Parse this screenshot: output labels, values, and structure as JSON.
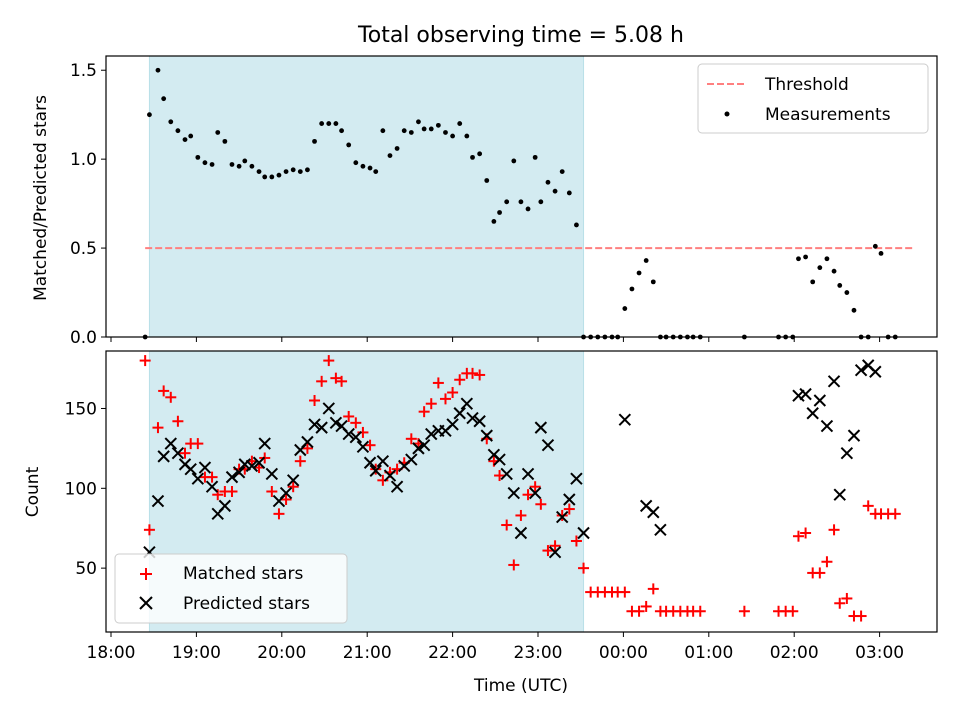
{
  "chart_data": [
    {
      "type": "scatter",
      "title": "Total observing time = 5.08 h",
      "ylabel": "Matched/Predicted stars",
      "xlim": [
        "18:00",
        "03:42"
      ],
      "ylim": [
        0,
        1.58
      ],
      "y_ticks": [
        "0.0",
        "0.5",
        "1.0",
        "1.5"
      ],
      "shaded_span": [
        "18:27",
        "23:32"
      ],
      "shade_color": "#d3ebf1",
      "legend_position": "top-right",
      "series": [
        {
          "name": "Threshold",
          "kind": "dashed-line",
          "color": "#ff7f7f",
          "x": [
            "18:24",
            "03:24"
          ],
          "y": [
            0.5,
            0.5
          ]
        },
        {
          "name": "Measurements",
          "kind": "dots",
          "color": "#000000",
          "x": [
            "18:24",
            "18:27",
            "18:33",
            "18:37",
            "18:42",
            "18:47",
            "18:52",
            "18:56",
            "19:01",
            "19:06",
            "19:11",
            "19:15",
            "19:20",
            "19:25",
            "19:30",
            "19:34",
            "19:39",
            "19:44",
            "19:48",
            "19:53",
            "19:58",
            "20:03",
            "20:08",
            "20:13",
            "20:18",
            "20:23",
            "20:28",
            "20:33",
            "20:38",
            "20:42",
            "20:47",
            "20:52",
            "20:57",
            "21:02",
            "21:06",
            "21:11",
            "21:16",
            "21:21",
            "21:26",
            "21:31",
            "21:36",
            "21:40",
            "21:45",
            "21:50",
            "21:55",
            "22:00",
            "22:05",
            "22:10",
            "22:14",
            "22:19",
            "22:24",
            "22:29",
            "22:33",
            "22:38",
            "22:43",
            "22:48",
            "22:53",
            "22:58",
            "23:02",
            "23:07",
            "23:12",
            "23:17",
            "23:22",
            "23:27",
            "23:32",
            "23:37",
            "23:42",
            "23:47",
            "23:52",
            "23:56",
            "00:01",
            "00:06",
            "00:11",
            "00:16",
            "00:21",
            "00:26",
            "00:30",
            "00:35",
            "00:40",
            "00:45",
            "00:49",
            "00:54",
            "01:25",
            "01:49",
            "01:54",
            "01:59",
            "02:03",
            "02:08",
            "02:13",
            "02:18",
            "02:23",
            "02:28",
            "02:32",
            "02:37",
            "02:42",
            "02:47",
            "02:52",
            "02:57",
            "03:01",
            "03:06",
            "03:11"
          ],
          "y": [
            0.0,
            1.25,
            1.5,
            1.34,
            1.21,
            1.16,
            1.11,
            1.13,
            1.01,
            0.98,
            0.97,
            1.15,
            1.1,
            0.97,
            0.96,
            0.99,
            0.96,
            0.93,
            0.9,
            0.9,
            0.91,
            0.93,
            0.94,
            0.93,
            0.94,
            1.1,
            1.2,
            1.2,
            1.2,
            1.16,
            1.08,
            0.98,
            0.96,
            0.95,
            0.93,
            1.16,
            1.02,
            1.06,
            1.16,
            1.15,
            1.21,
            1.17,
            1.17,
            1.19,
            1.15,
            1.13,
            1.2,
            1.13,
            1.01,
            1.03,
            0.88,
            0.65,
            0.7,
            0.76,
            0.99,
            0.76,
            0.72,
            1.01,
            0.76,
            0.87,
            0.82,
            0.93,
            0.81,
            0.63,
            0.0,
            0.0,
            0.0,
            0.0,
            0.0,
            0.0,
            0.16,
            0.27,
            0.36,
            0.43,
            0.31,
            0.0,
            0.0,
            0.0,
            0.0,
            0.0,
            0.0,
            0.0,
            0.0,
            0.0,
            0.0,
            0.0,
            0.44,
            0.45,
            0.31,
            0.39,
            0.44,
            0.37,
            0.29,
            0.25,
            0.15,
            0.0,
            0.0,
            0.51,
            0.47,
            0.0,
            0.0
          ]
        }
      ]
    },
    {
      "type": "scatter",
      "title": "",
      "xlabel": "Time (UTC)",
      "ylabel": "Count",
      "xlim": [
        "18:00",
        "03:42"
      ],
      "ylim": [
        10,
        186
      ],
      "x_ticks": [
        "18:00",
        "19:00",
        "20:00",
        "21:00",
        "22:00",
        "23:00",
        "00:00",
        "01:00",
        "02:00",
        "03:00"
      ],
      "y_ticks": [
        "50",
        "100",
        "150"
      ],
      "shaded_span": [
        "18:27",
        "23:32"
      ],
      "shade_color": "#d3ebf1",
      "legend_position": "bottom-left",
      "series": [
        {
          "name": "Matched stars",
          "kind": "plus",
          "color": "#ff0000",
          "x": [
            "18:24",
            "18:27",
            "18:33",
            "18:37",
            "18:42",
            "18:47",
            "18:52",
            "18:56",
            "19:01",
            "19:06",
            "19:11",
            "19:15",
            "19:20",
            "19:25",
            "19:30",
            "19:34",
            "19:39",
            "19:44",
            "19:48",
            "19:53",
            "19:58",
            "20:03",
            "20:08",
            "20:13",
            "20:18",
            "20:23",
            "20:28",
            "20:33",
            "20:38",
            "20:42",
            "20:47",
            "20:52",
            "20:57",
            "21:02",
            "21:06",
            "21:11",
            "21:16",
            "21:21",
            "21:26",
            "21:31",
            "21:36",
            "21:40",
            "21:45",
            "21:50",
            "21:55",
            "22:00",
            "22:05",
            "22:10",
            "22:14",
            "22:19",
            "22:24",
            "22:29",
            "22:33",
            "22:38",
            "22:43",
            "22:48",
            "22:53",
            "22:58",
            "23:02",
            "23:07",
            "23:12",
            "23:17",
            "23:22",
            "23:27",
            "23:32",
            "23:37",
            "23:42",
            "23:47",
            "23:52",
            "23:56",
            "00:01",
            "00:06",
            "00:11",
            "00:16",
            "00:21",
            "00:26",
            "00:30",
            "00:35",
            "00:40",
            "00:45",
            "00:49",
            "00:54",
            "01:25",
            "01:49",
            "01:54",
            "01:59",
            "02:03",
            "02:08",
            "02:13",
            "02:18",
            "02:23",
            "02:28",
            "02:32",
            "02:37",
            "02:42",
            "02:47",
            "02:52",
            "02:57",
            "03:01",
            "03:06",
            "03:11"
          ],
          "y": [
            180,
            74,
            138,
            161,
            157,
            142,
            122,
            128,
            128,
            107,
            107,
            96,
            98,
            98,
            112,
            112,
            117,
            113,
            119,
            98,
            84,
            93,
            101,
            117,
            125,
            155,
            167,
            180,
            169,
            167,
            145,
            141,
            135,
            127,
            112,
            105,
            110,
            112,
            116,
            131,
            128,
            148,
            153,
            166,
            156,
            160,
            168,
            172,
            172,
            171,
            131,
            117,
            108,
            77,
            52,
            83,
            96,
            101,
            90,
            61,
            64,
            83,
            87,
            67,
            50,
            35,
            35,
            35,
            35,
            35,
            35,
            23,
            23,
            26,
            37,
            23,
            23,
            23,
            23,
            23,
            23,
            23,
            23,
            23,
            23,
            23,
            70,
            72,
            47,
            47,
            54,
            74,
            28,
            31,
            20,
            20,
            89,
            84,
            84,
            84,
            84
          ]
        },
        {
          "name": "Predicted stars",
          "kind": "x",
          "color": "#000000",
          "x": [
            "18:27",
            "18:33",
            "18:37",
            "18:42",
            "18:47",
            "18:52",
            "18:56",
            "19:01",
            "19:06",
            "19:11",
            "19:15",
            "19:20",
            "19:25",
            "19:30",
            "19:34",
            "19:39",
            "19:44",
            "19:48",
            "19:53",
            "19:58",
            "20:03",
            "20:08",
            "20:13",
            "20:18",
            "20:23",
            "20:28",
            "20:33",
            "20:38",
            "20:42",
            "20:47",
            "20:52",
            "20:57",
            "21:02",
            "21:06",
            "21:11",
            "21:16",
            "21:21",
            "21:26",
            "21:31",
            "21:36",
            "21:40",
            "21:45",
            "21:50",
            "21:55",
            "22:00",
            "22:05",
            "22:10",
            "22:14",
            "22:19",
            "22:24",
            "22:29",
            "22:33",
            "22:38",
            "22:43",
            "22:48",
            "22:53",
            "22:58",
            "23:02",
            "23:07",
            "23:12",
            "23:17",
            "23:22",
            "23:27",
            "23:32",
            "00:01",
            "00:16",
            "00:21",
            "00:26",
            "02:03",
            "02:08",
            "02:13",
            "02:18",
            "02:23",
            "02:28",
            "02:32",
            "02:37",
            "02:42",
            "02:47",
            "02:52",
            "02:57"
          ],
          "y": [
            60,
            92,
            120,
            128,
            122,
            115,
            112,
            106,
            113,
            101,
            84,
            89,
            107,
            110,
            115,
            114,
            116,
            128,
            109,
            92,
            97,
            105,
            124,
            129,
            140,
            138,
            150,
            141,
            139,
            134,
            132,
            126,
            116,
            111,
            117,
            108,
            101,
            114,
            118,
            125,
            127,
            134,
            136,
            136,
            140,
            147,
            153,
            144,
            142,
            133,
            121,
            118,
            109,
            97,
            72,
            109,
            97,
            138,
            127,
            60,
            82,
            93,
            106,
            72,
            143,
            89,
            85,
            74,
            158,
            159,
            147,
            155,
            139,
            167,
            96,
            122,
            133,
            174,
            177,
            173
          ]
        }
      ]
    }
  ]
}
